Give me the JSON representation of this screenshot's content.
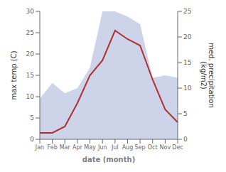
{
  "chart_data": {
    "type": "line",
    "categories": [
      "Jan",
      "Feb",
      "Mar",
      "Apr",
      "May",
      "Jun",
      "Jul",
      "Aug",
      "Sep",
      "Oct",
      "Nov",
      "Dec"
    ],
    "series": [
      {
        "type": "area",
        "color": "#b8c0e0",
        "axis": "y2",
        "values": [
          8.0,
          11.0,
          9.0,
          10.0,
          14.0,
          25.0,
          25.0,
          24.0,
          22.5,
          12.0,
          12.5,
          12.0
        ]
      },
      {
        "type": "line",
        "color": "#b03030",
        "values": [
          1.5,
          1.5,
          3.0,
          8.5,
          15.0,
          18.5,
          25.5,
          23.5,
          22.0,
          14.0,
          7.0,
          4.0
        ]
      }
    ],
    "xlabel": "date (month)",
    "ylabel": "max temp (C)",
    "y2label": "med. precipitation\n(kg/m2)",
    "ylim": [
      0,
      30
    ],
    "yticks": [
      0,
      5,
      10,
      15,
      20,
      25,
      30
    ],
    "y2lim": [
      0,
      25
    ],
    "y2ticks": [
      0,
      5,
      10,
      15,
      20,
      25
    ],
    "grid": false
  }
}
